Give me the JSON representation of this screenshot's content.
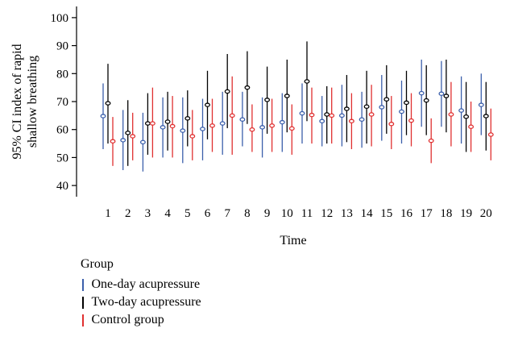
{
  "chart_data": {
    "type": "errorbar",
    "title": "",
    "xlabel": "Time",
    "ylabel_lines": [
      "95% CI index of rapid",
      "shallow breathing"
    ],
    "ylim": [
      36,
      104
    ],
    "yticks": [
      40,
      50,
      60,
      70,
      80,
      90,
      100
    ],
    "categories": [
      "1",
      "2",
      "3",
      "4",
      "5",
      "6",
      "7",
      "8",
      "9",
      "10",
      "11",
      "12",
      "13",
      "14",
      "15",
      "16",
      "17",
      "18",
      "19",
      "20"
    ],
    "grid": false,
    "legend": {
      "title": "Group",
      "placement": "bottom-left"
    },
    "series": [
      {
        "name": "One-day acupressure",
        "color": "#3b5fab",
        "mean": [
          64.8,
          56.2,
          55.5,
          60.8,
          59.6,
          60.2,
          62.2,
          63.6,
          60.8,
          62.6,
          65.8,
          63.0,
          65.0,
          63.6,
          68.0,
          66.4,
          73.0,
          72.8,
          66.8,
          68.8
        ],
        "lower": [
          53.0,
          45.5,
          45.0,
          50.0,
          48.0,
          49.0,
          51.0,
          54.0,
          50.0,
          52.0,
          55.0,
          54.0,
          54.0,
          53.5,
          56.0,
          55.0,
          61.0,
          61.0,
          55.0,
          58.0
        ],
        "upper": [
          76.5,
          67.0,
          66.0,
          71.5,
          71.5,
          71.0,
          73.5,
          73.5,
          71.5,
          73.0,
          76.5,
          72.0,
          76.0,
          73.5,
          79.5,
          77.5,
          85.0,
          84.5,
          79.0,
          80.0
        ]
      },
      {
        "name": "Two-day acupressure",
        "color": "#000000",
        "mean": [
          69.4,
          58.8,
          62.2,
          62.8,
          64.0,
          68.8,
          73.6,
          75.0,
          70.6,
          72.0,
          77.2,
          65.4,
          67.4,
          68.2,
          70.8,
          69.6,
          70.4,
          72.0,
          64.6,
          64.8
        ],
        "lower": [
          55.0,
          47.0,
          51.0,
          52.5,
          54.0,
          56.5,
          60.5,
          62.0,
          58.5,
          59.0,
          63.0,
          55.0,
          55.5,
          55.0,
          58.5,
          58.0,
          58.0,
          59.0,
          52.0,
          52.5
        ],
        "upper": [
          83.5,
          70.5,
          73.0,
          73.5,
          74.0,
          81.0,
          87.0,
          88.0,
          82.5,
          85.0,
          91.5,
          75.5,
          79.5,
          81.0,
          83.0,
          81.0,
          83.0,
          85.0,
          77.0,
          77.0
        ]
      },
      {
        "name": "Control group",
        "color": "#e03030",
        "mean": [
          55.8,
          57.6,
          62.2,
          61.2,
          57.6,
          61.4,
          65.0,
          60.0,
          61.4,
          60.4,
          65.2,
          65.0,
          63.0,
          65.4,
          62.0,
          63.2,
          56.0,
          65.4,
          61.0,
          58.2
        ],
        "lower": [
          47.0,
          49.0,
          50.0,
          50.0,
          49.0,
          52.0,
          51.0,
          52.0,
          52.0,
          51.0,
          55.0,
          55.0,
          53.0,
          54.0,
          53.0,
          54.0,
          48.0,
          54.0,
          52.0,
          49.0
        ],
        "upper": [
          64.5,
          66.0,
          75.0,
          72.0,
          67.0,
          71.0,
          79.0,
          69.0,
          71.0,
          69.0,
          75.0,
          75.0,
          73.0,
          76.0,
          72.0,
          73.0,
          64.0,
          77.0,
          70.0,
          67.5
        ]
      }
    ]
  }
}
